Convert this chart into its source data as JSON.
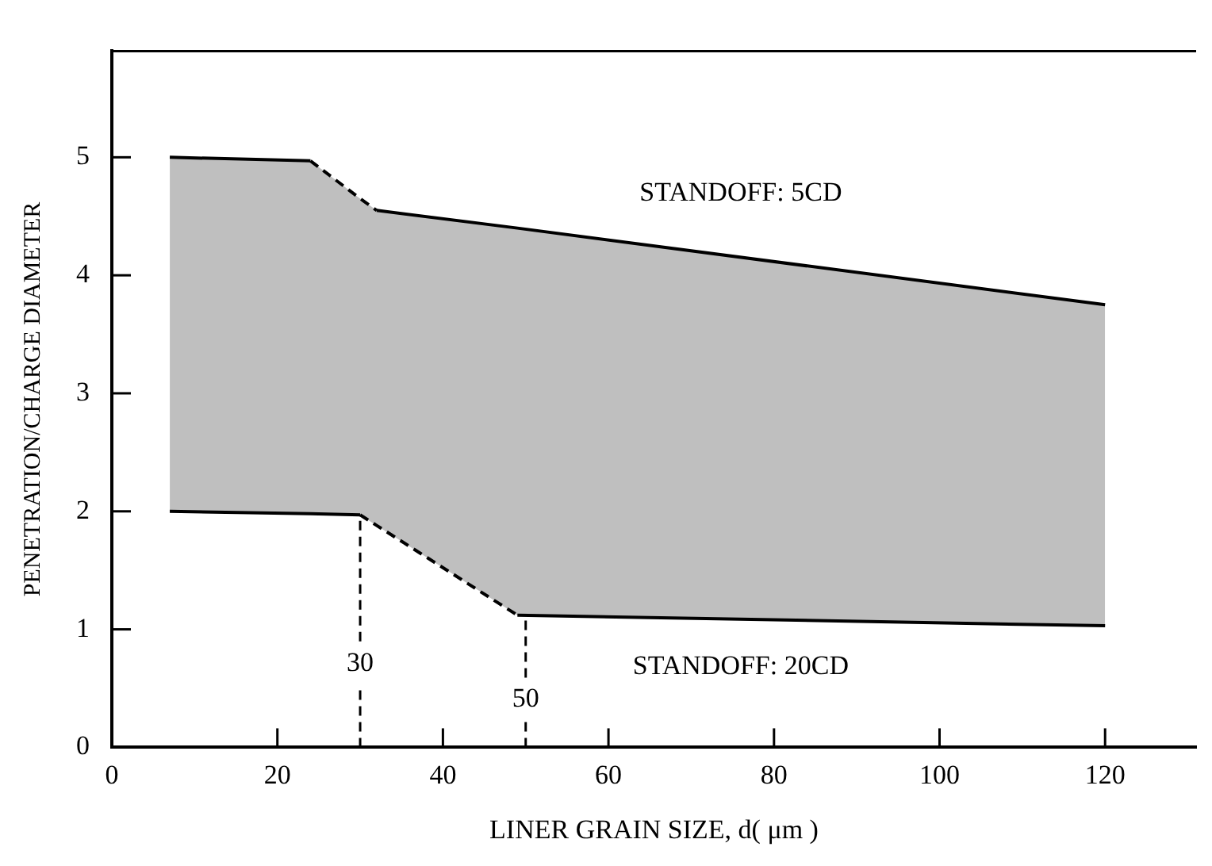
{
  "chart_data": {
    "type": "line",
    "xlabel": "LINER GRAIN SIZE, d( μm )",
    "ylabel": "PENETRATION/CHARGE DIAMETER",
    "xlim": [
      0,
      131
    ],
    "xticks": [
      0,
      20,
      40,
      60,
      80,
      100,
      120
    ],
    "ylim": [
      0,
      5.9
    ],
    "yticks": [
      0,
      1,
      2,
      3,
      4,
      5
    ],
    "series": [
      {
        "type": "area",
        "color": "#000000",
        "x": [
          7,
          24,
          30,
          32,
          49,
          120
        ],
        "values": [
          5.0,
          4.97,
          4.65,
          4.55,
          4.4,
          3.75
        ],
        "line_style": [
          "solid",
          "dashed",
          "dashed",
          "solid",
          "solid"
        ]
      },
      {
        "type": "line",
        "color": "#000000",
        "x": [
          7,
          24,
          30,
          32,
          49,
          120
        ],
        "values": [
          2.0,
          1.98,
          1.97,
          1.88,
          1.12,
          1.03
        ],
        "line_style": [
          "solid",
          "solid",
          "dashed",
          "dashed",
          "solid"
        ]
      }
    ],
    "ref_lines": [
      {
        "axis": "x",
        "value": 30,
        "label": "30",
        "line_style": "dashed"
      },
      {
        "axis": "x",
        "value": 50,
        "label": "50",
        "line_style": "dashed"
      }
    ],
    "annotations": [
      "STANDOFF: 5CD",
      "STANDOFF: 20CD"
    ],
    "legend": false,
    "marker": "none"
  }
}
